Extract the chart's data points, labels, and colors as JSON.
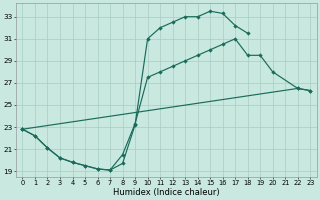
{
  "xlabel": "Humidex (Indice chaleur)",
  "bg_color": "#c8e8e0",
  "grid_color": "#a8ccc4",
  "line_color": "#1a6b5a",
  "line1_x": [
    0,
    1,
    2,
    3,
    4,
    5,
    6,
    7,
    8,
    9,
    10,
    11,
    12,
    13,
    14,
    15,
    16,
    17,
    18
  ],
  "line1_y": [
    22.8,
    22.2,
    21.1,
    20.2,
    19.8,
    19.5,
    19.2,
    19.1,
    19.7,
    23.2,
    31.0,
    32.0,
    32.5,
    33.0,
    33.0,
    33.5,
    33.3,
    32.2,
    31.5
  ],
  "line2_x": [
    0,
    1,
    2,
    3,
    4,
    5,
    6,
    7,
    8,
    9,
    10,
    11,
    12,
    13,
    14,
    15,
    16,
    17,
    18,
    19,
    20,
    22,
    23
  ],
  "line2_y": [
    22.8,
    22.2,
    21.1,
    20.2,
    19.8,
    19.5,
    19.2,
    19.1,
    20.5,
    23.3,
    27.5,
    28.0,
    28.5,
    29.0,
    29.5,
    30.0,
    30.5,
    31.0,
    29.5,
    29.5,
    28.0,
    26.5,
    26.3
  ],
  "line3_x": [
    0,
    22,
    23
  ],
  "line3_y": [
    22.8,
    26.5,
    26.3
  ],
  "xlim": [
    -0.5,
    23.5
  ],
  "ylim": [
    18.5,
    34.2
  ],
  "yticks": [
    19,
    21,
    23,
    25,
    27,
    29,
    31,
    33
  ],
  "xticks": [
    0,
    1,
    2,
    3,
    4,
    5,
    6,
    7,
    8,
    9,
    10,
    11,
    12,
    13,
    14,
    15,
    16,
    17,
    18,
    19,
    20,
    21,
    22,
    23
  ]
}
